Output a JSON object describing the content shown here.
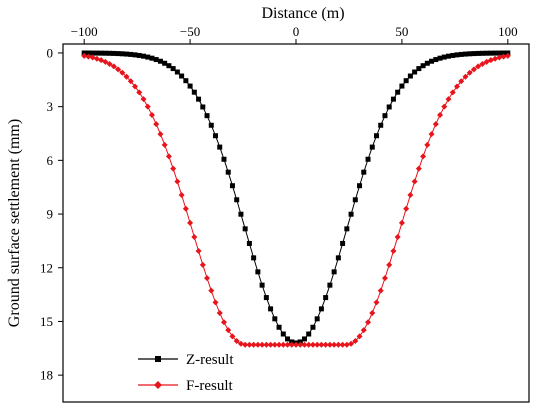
{
  "chart_data": {
    "type": "line",
    "title": "",
    "xlabel": "Distance (m)",
    "ylabel": "Ground surface settlement (mm)",
    "x_axis_position": "top",
    "y_axis_inverted": true,
    "xlim": [
      -110,
      110
    ],
    "ylim": [
      -0.5,
      19.5
    ],
    "xticks": [
      -100,
      -50,
      0,
      50,
      100
    ],
    "yticks": [
      0,
      3,
      6,
      9,
      12,
      15,
      18
    ],
    "xtick_labels": [
      "−100",
      "−50",
      "0",
      "50",
      "100"
    ],
    "ytick_labels": [
      "0",
      "3",
      "6",
      "9",
      "12",
      "15",
      "18"
    ],
    "grid": false,
    "legend_position": "bottom-left",
    "x_range": [
      -100,
      100
    ],
    "x_step": 2,
    "series": [
      {
        "name": "Z-result",
        "color": "#000000",
        "marker": "square",
        "model": "gaussian",
        "max_settlement": 16.2,
        "trough_width_i": 24
      },
      {
        "name": "F-result",
        "color": "#e8141c",
        "marker": "diamond",
        "model": "flat-bottom-gaussian",
        "max_settlement": 16.3,
        "flat_half_width": 24,
        "trough_width_i": 25
      }
    ]
  }
}
